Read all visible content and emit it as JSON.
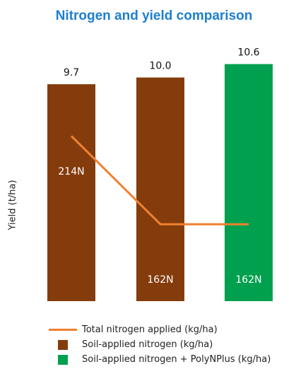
{
  "chart_data": {
    "type": "bar",
    "title": "Nitrogen and yield comparison",
    "ylabel": "Yield (t/ha)",
    "xlabel": "",
    "ylim": [
      0,
      11
    ],
    "grid": false,
    "legend_position": "bottom",
    "bars": [
      {
        "label": "9.7",
        "value": 9.7,
        "group": 0,
        "nlabel": "214N"
      },
      {
        "label": "10.0",
        "value": 10.0,
        "group": 0,
        "nlabel": "162N"
      },
      {
        "label": "10.6",
        "value": 10.6,
        "group": 1,
        "nlabel": "162N"
      }
    ],
    "line": {
      "values_kg_ha": [
        214,
        162,
        162
      ],
      "ylim": [
        120,
        240
      ]
    },
    "legend": [
      {
        "kind": "line",
        "text": "Total nitrogen applied (kg/ha)",
        "color": "#f08030"
      },
      {
        "kind": "square",
        "text": "Soil-applied nitrogen (kg/ha)",
        "color": "#843c0c"
      },
      {
        "kind": "square",
        "text": "Soil-applied nitrogen + PolyNPlus (kg/ha)",
        "color": "#00a04f"
      }
    ],
    "colors": {
      "title": "#1d7fd1",
      "soil": "#843c0c",
      "poly": "#00a04f",
      "line": "#f08030",
      "nlabel_text": "#ffffff"
    }
  }
}
